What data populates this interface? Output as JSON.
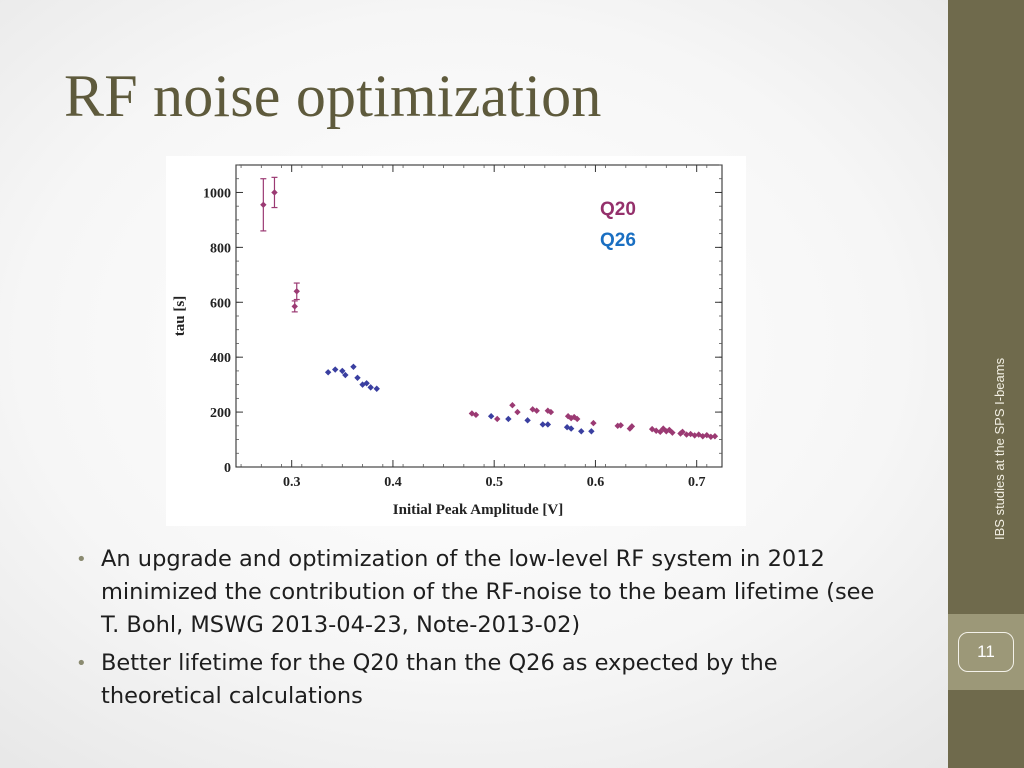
{
  "slide": {
    "title": "RF noise optimization",
    "footer": "IBS studies at the SPS I-beams",
    "page_number": "11"
  },
  "bullets": [
    "An upgrade and optimization of the low-level RF system in 2012 minimized the contribution of the RF-noise to the beam lifetime (see T. Bohl, MSWG 2013-04-23, Note-2013-02)",
    "Better lifetime for the Q20 than the Q26 as expected by the theoretical calculations"
  ],
  "colors": {
    "title": "#5e5a3c",
    "sidebar": "#6f6a4c",
    "page_box": "#9c9878",
    "q20": "#9b3a73",
    "q26": "#3a3fa0",
    "q20_label": "#94306b",
    "q26_label": "#1a6fc2"
  },
  "chart_data": {
    "type": "scatter",
    "xlabel": "Initial Peak Amplitude [V]",
    "ylabel": "tau [s]",
    "xlim": [
      0.245,
      0.725
    ],
    "ylim": [
      0,
      1100
    ],
    "xticks": [
      0.3,
      0.4,
      0.5,
      0.6,
      0.7
    ],
    "xtick_labels": [
      "0.3",
      "0.4",
      "0.5",
      "0.6",
      "0.7"
    ],
    "yticks": [
      0,
      200,
      400,
      600,
      800,
      1000
    ],
    "ytick_labels": [
      "0",
      "200",
      "400",
      "600",
      "800",
      "1000"
    ],
    "grid": false,
    "legend_position": "top-right",
    "series": [
      {
        "name": "Q20",
        "color": "#9b3a73",
        "points": [
          {
            "x": 0.272,
            "y": 955,
            "err": 95
          },
          {
            "x": 0.283,
            "y": 1000,
            "err": 55
          },
          {
            "x": 0.303,
            "y": 585,
            "err": 20
          },
          {
            "x": 0.305,
            "y": 640,
            "err": 30
          },
          {
            "x": 0.478,
            "y": 195
          },
          {
            "x": 0.482,
            "y": 190
          },
          {
            "x": 0.503,
            "y": 175
          },
          {
            "x": 0.518,
            "y": 225
          },
          {
            "x": 0.523,
            "y": 200
          },
          {
            "x": 0.538,
            "y": 210
          },
          {
            "x": 0.542,
            "y": 205
          },
          {
            "x": 0.553,
            "y": 205
          },
          {
            "x": 0.556,
            "y": 200
          },
          {
            "x": 0.573,
            "y": 185
          },
          {
            "x": 0.576,
            "y": 178
          },
          {
            "x": 0.579,
            "y": 182
          },
          {
            "x": 0.582,
            "y": 175
          },
          {
            "x": 0.598,
            "y": 160
          },
          {
            "x": 0.622,
            "y": 150
          },
          {
            "x": 0.625,
            "y": 152
          },
          {
            "x": 0.634,
            "y": 140
          },
          {
            "x": 0.636,
            "y": 148
          },
          {
            "x": 0.656,
            "y": 138
          },
          {
            "x": 0.66,
            "y": 132
          },
          {
            "x": 0.664,
            "y": 128
          },
          {
            "x": 0.667,
            "y": 140
          },
          {
            "x": 0.67,
            "y": 130
          },
          {
            "x": 0.673,
            "y": 135
          },
          {
            "x": 0.676,
            "y": 125
          },
          {
            "x": 0.684,
            "y": 122
          },
          {
            "x": 0.686,
            "y": 128
          },
          {
            "x": 0.69,
            "y": 118
          },
          {
            "x": 0.694,
            "y": 120
          },
          {
            "x": 0.698,
            "y": 115
          },
          {
            "x": 0.702,
            "y": 118
          },
          {
            "x": 0.706,
            "y": 112
          },
          {
            "x": 0.71,
            "y": 116
          },
          {
            "x": 0.714,
            "y": 110
          },
          {
            "x": 0.718,
            "y": 112
          }
        ]
      },
      {
        "name": "Q26",
        "color": "#3a3fa0",
        "points": [
          {
            "x": 0.336,
            "y": 345
          },
          {
            "x": 0.343,
            "y": 355
          },
          {
            "x": 0.35,
            "y": 350
          },
          {
            "x": 0.353,
            "y": 335
          },
          {
            "x": 0.361,
            "y": 365
          },
          {
            "x": 0.365,
            "y": 325
          },
          {
            "x": 0.37,
            "y": 300
          },
          {
            "x": 0.374,
            "y": 305
          },
          {
            "x": 0.378,
            "y": 290
          },
          {
            "x": 0.384,
            "y": 285
          },
          {
            "x": 0.497,
            "y": 185
          },
          {
            "x": 0.514,
            "y": 175
          },
          {
            "x": 0.533,
            "y": 170
          },
          {
            "x": 0.548,
            "y": 155
          },
          {
            "x": 0.553,
            "y": 155
          },
          {
            "x": 0.572,
            "y": 145
          },
          {
            "x": 0.576,
            "y": 140
          },
          {
            "x": 0.586,
            "y": 130
          },
          {
            "x": 0.596,
            "y": 130
          }
        ]
      }
    ]
  }
}
